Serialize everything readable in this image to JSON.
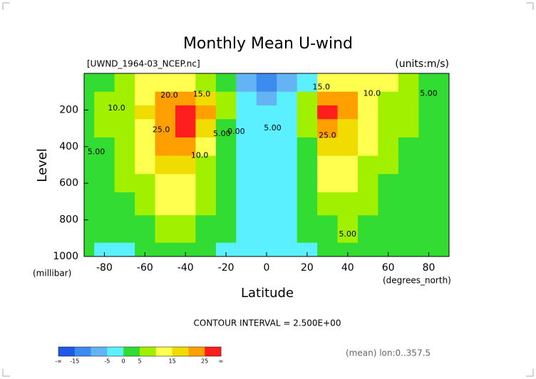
{
  "chart_data": {
    "type": "contour",
    "title": "Monthly Mean U-wind",
    "subtitle": "[UWND_1964-03_NCEP.nc]",
    "units": "(units:m/s)",
    "x_label": "Latitude",
    "x_unit": "(degrees_north)",
    "y_label": "Level",
    "y_unit": "(millibar)",
    "footer": "CONTOUR INTERVAL = 2.500E+00",
    "note": "(mean) lon:0..357.5",
    "x": [
      -90,
      -80,
      -70,
      -60,
      -50,
      -40,
      -30,
      -20,
      -10,
      0,
      10,
      20,
      30,
      40,
      50,
      60,
      70,
      80,
      90
    ],
    "y": [
      50,
      150,
      200,
      300,
      400,
      500,
      600,
      700,
      850,
      1000
    ],
    "z": [
      [
        2,
        4,
        8,
        12,
        14,
        12,
        8,
        2,
        -8,
        -15,
        -10,
        -2,
        10,
        14,
        12,
        10,
        6,
        4,
        2
      ],
      [
        3,
        5,
        8,
        14,
        20,
        22,
        18,
        6,
        -2,
        -6,
        -4,
        6,
        24,
        20,
        12,
        8,
        6,
        3,
        2
      ],
      [
        3,
        5,
        9,
        15,
        24,
        27,
        20,
        6,
        -2,
        -5,
        -2,
        8,
        28,
        22,
        13,
        8,
        5,
        3,
        1
      ],
      [
        3,
        5,
        9,
        14,
        24,
        27,
        16,
        4,
        -1,
        -4,
        -1,
        6,
        24,
        19,
        12,
        7,
        5,
        3,
        1
      ],
      [
        2,
        4,
        7,
        12,
        21,
        22,
        12,
        3,
        -1,
        -4,
        -1,
        4,
        18,
        16,
        11,
        6,
        4,
        2,
        1
      ],
      [
        2,
        4,
        6,
        10,
        17,
        17,
        9,
        2,
        -1,
        -3,
        -1,
        3,
        13,
        13,
        9,
        5,
        3,
        2,
        1
      ],
      [
        1,
        3,
        5,
        8,
        14,
        13,
        7,
        1,
        -1,
        -3,
        -1,
        2,
        10,
        10,
        7,
        4,
        3,
        2,
        1
      ],
      [
        1,
        2,
        4,
        7,
        12,
        10,
        5,
        1,
        -1,
        -3,
        -1,
        1,
        7,
        8,
        6,
        3,
        2,
        1,
        0
      ],
      [
        0,
        1,
        2,
        4,
        8,
        6,
        3,
        0,
        -2,
        -3,
        -2,
        0,
        3,
        5,
        4,
        2,
        1,
        1,
        0
      ],
      [
        0,
        -1,
        -1,
        0,
        4,
        3,
        0,
        -2,
        -3,
        -2,
        -3,
        -2,
        0,
        2,
        2,
        1,
        0,
        0,
        0
      ]
    ],
    "xlim": [
      -90,
      90
    ],
    "ylim": [
      1000,
      0
    ],
    "xticks": [
      -80,
      -60,
      -40,
      -20,
      0,
      20,
      40,
      60,
      80
    ],
    "yticks": [
      200,
      400,
      600,
      800,
      1000
    ],
    "levels": [
      -15,
      -10,
      -5,
      0,
      5,
      10,
      15,
      20,
      25
    ],
    "colors": [
      "#1e5ae6",
      "#3c8cf0",
      "#64b4f5",
      "#5af0ff",
      "#32dc32",
      "#a0f000",
      "#ffff50",
      "#f0dc00",
      "#ffa000",
      "#ff1e1e"
    ],
    "colorbar_ticks": [
      -15,
      -5,
      0,
      5,
      15,
      25
    ],
    "colorbar_ends": [
      "-∞",
      "∞"
    ],
    "contour_labels": [
      {
        "text": "20.0",
        "x": -48,
        "y": 120
      },
      {
        "text": "15.0",
        "x": -32,
        "y": 115
      },
      {
        "text": "10.0",
        "x": -74,
        "y": 190
      },
      {
        "text": "25.0",
        "x": -52,
        "y": 310
      },
      {
        "text": "5.00",
        "x": -84,
        "y": 430
      },
      {
        "text": "10.0",
        "x": -33,
        "y": 450
      },
      {
        "text": "5.00",
        "x": -22,
        "y": 330
      },
      {
        "text": "0.00",
        "x": -15,
        "y": 320
      },
      {
        "text": "5.00",
        "x": 3,
        "y": 300
      },
      {
        "text": "15.0",
        "x": 27,
        "y": 75
      },
      {
        "text": "10.0",
        "x": 52,
        "y": 110
      },
      {
        "text": "5.00",
        "x": 80,
        "y": 110
      },
      {
        "text": "25.0",
        "x": 30,
        "y": 340
      },
      {
        "text": "5.00",
        "x": 40,
        "y": 880
      }
    ]
  }
}
